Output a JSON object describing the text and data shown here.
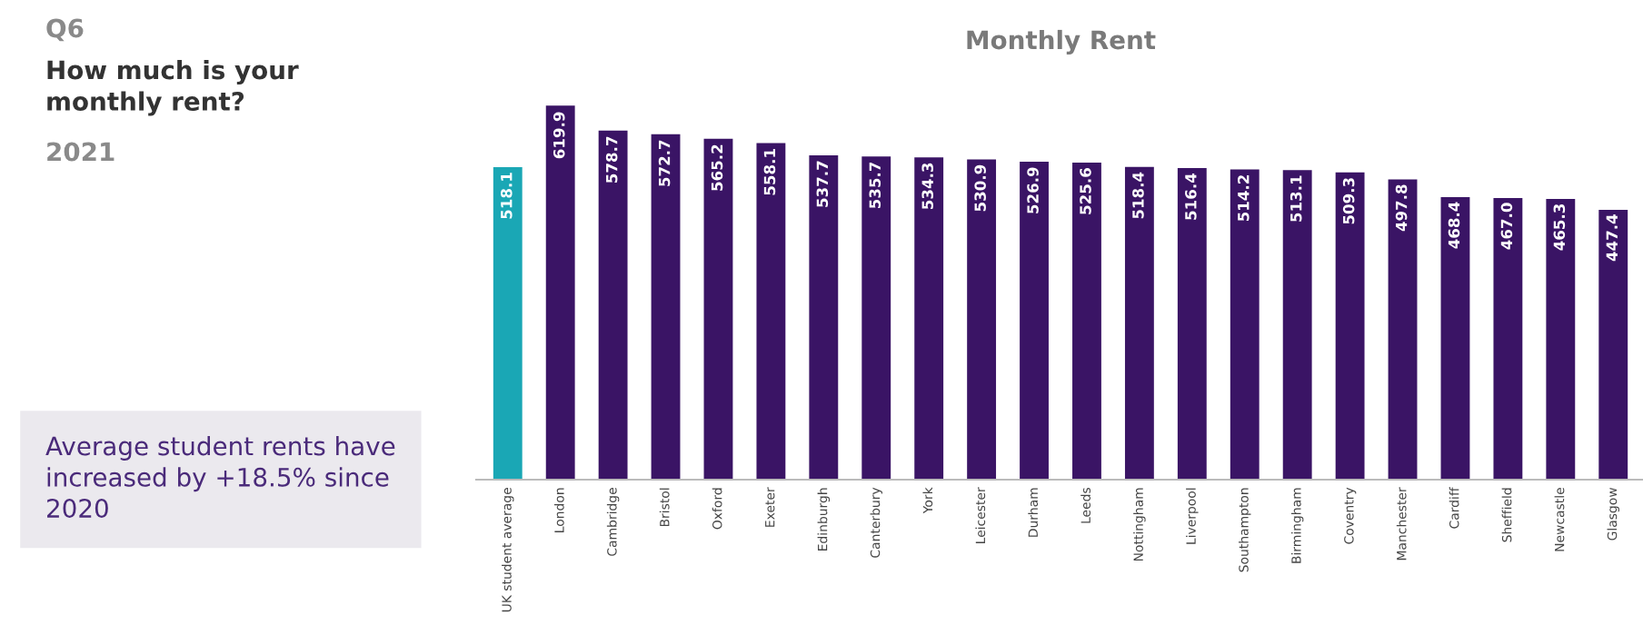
{
  "chart_data": {
    "type": "bar",
    "title": "Monthly Rent",
    "categories": [
      "UK student average",
      "London",
      "Cambridge",
      "Bristol",
      "Oxford",
      "Exeter",
      "Edinburgh",
      "Canterbury",
      "York",
      "Leicester",
      "Durham",
      "Leeds",
      "Nottingham",
      "Liverpool",
      "Southampton",
      "Birmingham",
      "Coventry",
      "Manchester",
      "Cardiff",
      "Sheffield",
      "Newcastle",
      "Glasgow"
    ],
    "values": [
      518.1,
      619.9,
      578.7,
      572.7,
      565.2,
      558.1,
      537.7,
      535.7,
      534.3,
      530.9,
      526.9,
      525.6,
      518.4,
      516.4,
      514.2,
      513.1,
      509.3,
      497.8,
      468.4,
      467.0,
      465.3,
      447.4
    ],
    "colors": [
      "#1aa7b5",
      "#3a1465",
      "#3a1465",
      "#3a1465",
      "#3a1465",
      "#3a1465",
      "#3a1465",
      "#3a1465",
      "#3a1465",
      "#3a1465",
      "#3a1465",
      "#3a1465",
      "#3a1465",
      "#3a1465",
      "#3a1465",
      "#3a1465",
      "#3a1465",
      "#3a1465",
      "#3a1465",
      "#3a1465",
      "#3a1465",
      "#3a1465"
    ],
    "value_labels": [
      "518.1",
      "619.9",
      "578.7",
      "572.7",
      "565.2",
      "558.1",
      "537.7",
      "535.7",
      "534.3",
      "530.9",
      "526.9",
      "525.6",
      "518.4",
      "516.4",
      "514.2",
      "513.1",
      "509.3",
      "497.8",
      "468.4",
      "467.0",
      "465.3",
      "447.4"
    ],
    "grid": false,
    "legend": false,
    "annotations": [
      "Q6",
      "How much is your monthly rent?",
      "2021",
      "Average student rents have increased by +18.5% since 2020"
    ]
  }
}
